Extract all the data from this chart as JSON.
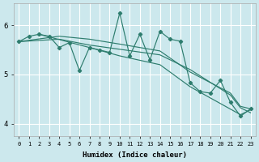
{
  "xlabel": "Humidex (Indice chaleur)",
  "bg_color": "#cce8ed",
  "grid_color": "#b0d8de",
  "line_color": "#2e7d6e",
  "xlim": [
    -0.5,
    23.5
  ],
  "ylim": [
    3.75,
    6.45
  ],
  "yticks": [
    4,
    5,
    6
  ],
  "xticks": [
    0,
    1,
    2,
    3,
    4,
    5,
    6,
    7,
    8,
    9,
    10,
    11,
    12,
    13,
    14,
    15,
    16,
    17,
    18,
    19,
    20,
    21,
    22,
    23
  ],
  "jagged_x": [
    0,
    1,
    2,
    3,
    4,
    5,
    6,
    7,
    8,
    9,
    10,
    11,
    12,
    13,
    14,
    15,
    16,
    17,
    18,
    19,
    20,
    21,
    22,
    23
  ],
  "jagged_y": [
    5.67,
    5.78,
    5.82,
    5.78,
    5.55,
    5.65,
    5.08,
    5.55,
    5.5,
    5.45,
    6.25,
    5.38,
    5.82,
    5.3,
    5.88,
    5.72,
    5.68,
    4.83,
    4.65,
    4.62,
    4.88,
    4.43,
    4.15,
    4.3
  ],
  "trend1_x": [
    0,
    4,
    7,
    10,
    14,
    17,
    21,
    22,
    23
  ],
  "trend1_y": [
    5.67,
    5.78,
    5.72,
    5.62,
    5.48,
    5.05,
    4.62,
    4.35,
    4.3
  ],
  "trend2_x": [
    0,
    4,
    7,
    14,
    17,
    21,
    22,
    23
  ],
  "trend2_y": [
    5.67,
    5.72,
    5.6,
    5.4,
    5.1,
    4.58,
    4.32,
    4.22
  ],
  "trend3_x": [
    2,
    7,
    10,
    14,
    17,
    22,
    23
  ],
  "trend3_y": [
    5.82,
    5.55,
    5.38,
    5.2,
    4.75,
    4.18,
    4.28
  ]
}
